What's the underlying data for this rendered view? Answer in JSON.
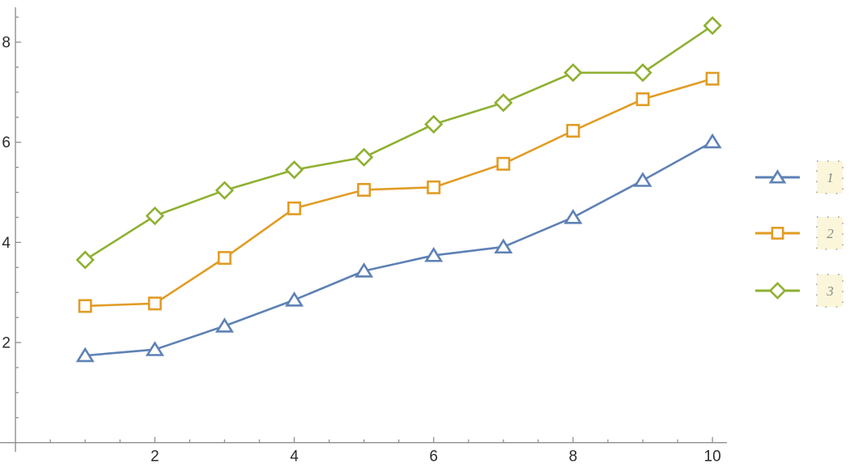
{
  "chart_data": {
    "type": "line",
    "title": "",
    "xlabel": "",
    "ylabel": "",
    "x": [
      1,
      2,
      3,
      4,
      5,
      6,
      7,
      8,
      9,
      10
    ],
    "series": [
      {
        "name": "1",
        "marker": "triangle",
        "color": "#5E81B5",
        "values": [
          1.74,
          1.86,
          2.33,
          2.85,
          3.43,
          3.74,
          3.91,
          4.5,
          5.24,
          6.01
        ]
      },
      {
        "name": "2",
        "marker": "square",
        "color": "#E19C24",
        "values": [
          2.73,
          2.78,
          3.69,
          4.68,
          5.05,
          5.1,
          5.57,
          6.23,
          6.86,
          7.27
        ]
      },
      {
        "name": "3",
        "marker": "diamond",
        "color": "#8FB032",
        "values": [
          3.65,
          4.53,
          5.04,
          5.45,
          5.7,
          6.36,
          6.79,
          7.39,
          7.39,
          8.33
        ]
      }
    ],
    "xlim": [
      0,
      10.2
    ],
    "ylim": [
      0,
      8.72
    ],
    "x_major_ticks": [
      2,
      4,
      6,
      8,
      10
    ],
    "y_major_ticks": [
      2,
      4,
      6,
      8
    ],
    "x_minor_tick_step": 0.5,
    "y_minor_tick_step": 0.5,
    "grid": false,
    "axes_style": {
      "axis_line_color": "#8f8f8f",
      "tick_color": "#8f8f8f",
      "tick_label_color": "#2b2b2b"
    },
    "legend": {
      "position": "right",
      "entries": [
        {
          "label": "1",
          "marker": "triangle",
          "color": "#5E81B5"
        },
        {
          "label": "2",
          "marker": "square",
          "color": "#E19C24"
        },
        {
          "label": "3",
          "marker": "diamond",
          "color": "#8FB032"
        }
      ],
      "label_box_fill": "#FBF6DA",
      "label_box_border": "#b3b3b3",
      "label_text_color": "#8a8a8a"
    }
  }
}
